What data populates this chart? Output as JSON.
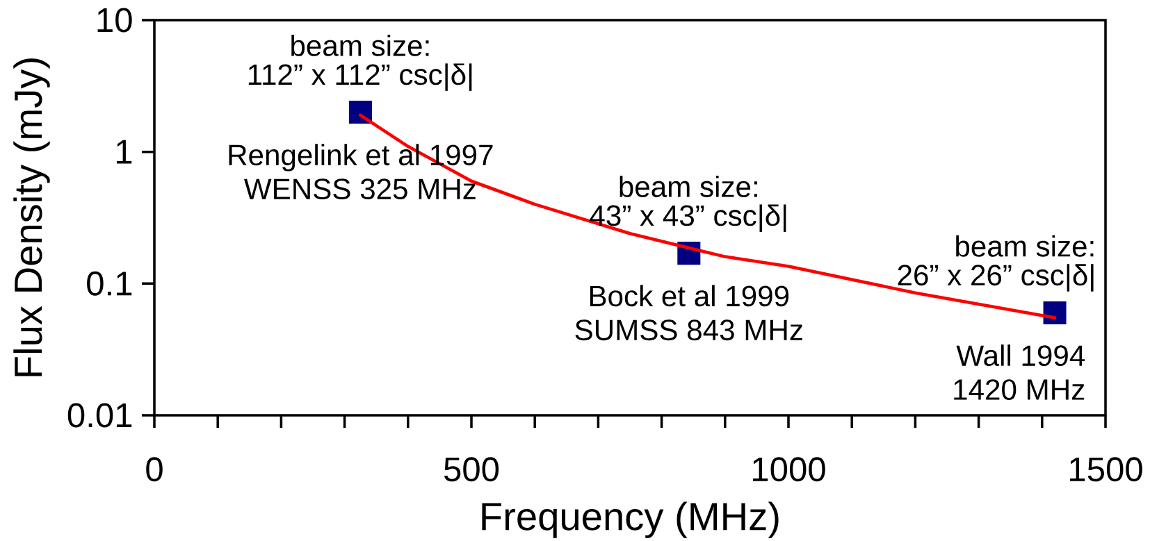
{
  "chart_data": {
    "type": "scatter",
    "xlabel": "Frequency (MHz)",
    "ylabel": "Flux Density (mJy)",
    "log": "y",
    "xlim": [
      0,
      1500
    ],
    "ylim": [
      0.01,
      10
    ],
    "xticks": [
      0,
      500,
      1000,
      1500
    ],
    "yticks": [
      0.01,
      0.1,
      1,
      10
    ],
    "grid": false,
    "marker": "square",
    "series": [
      {
        "color": "#000080",
        "x": [
          325,
          843,
          1420
        ],
        "values": [
          2,
          0.17,
          0.06
        ]
      },
      {
        "type": "line",
        "color": "#ff0000",
        "marker": "none",
        "x": [
          325,
          400,
          500,
          600,
          750,
          900,
          1000,
          1200,
          1420
        ],
        "values": [
          1.9,
          1.1,
          0.6,
          0.4,
          0.24,
          0.16,
          0.135,
          0.085,
          0.055
        ]
      }
    ],
    "annotations": [
      {
        "text": "beam size:",
        "x": 325,
        "y": 2
      },
      {
        "text": "112” x 112” csc|δ|",
        "x": 325,
        "y": 2
      },
      {
        "text": "Rengelink et al 1997",
        "x": 325,
        "y": 2
      },
      {
        "text": "WENSS 325 MHz",
        "x": 325,
        "y": 2
      },
      {
        "text": "beam size:",
        "x": 843,
        "y": 0.17
      },
      {
        "text": "43” x 43” csc|δ|",
        "x": 843,
        "y": 0.17
      },
      {
        "text": "Bock et al 1999",
        "x": 843,
        "y": 0.17
      },
      {
        "text": "SUMSS 843 MHz",
        "x": 843,
        "y": 0.17
      },
      {
        "text": "beam size:",
        "x": 1420,
        "y": 0.06
      },
      {
        "text": "26” x 26” csc|δ|",
        "x": 1420,
        "y": 0.06
      },
      {
        "text": "Wall 1994",
        "x": 1420,
        "y": 0.06
      },
      {
        "text": "1420 MHz",
        "x": 1420,
        "y": 0.06
      }
    ]
  }
}
